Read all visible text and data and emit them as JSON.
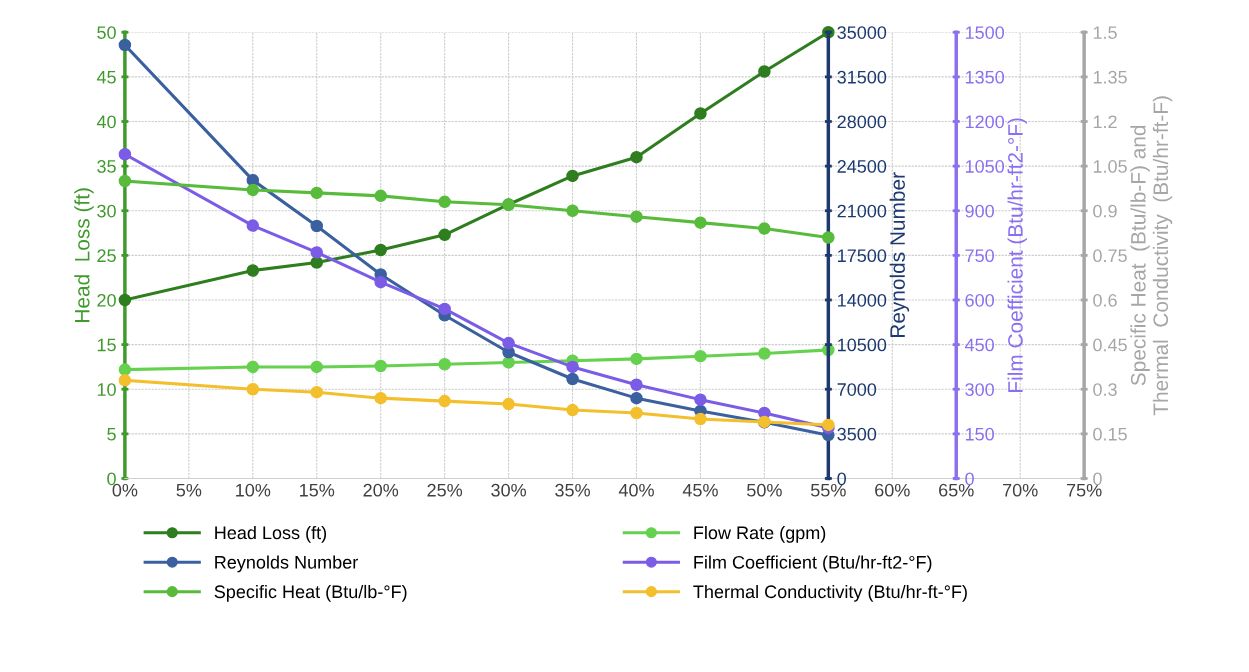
{
  "chart_data": [
    {
      "type": "line",
      "x": [
        0,
        10,
        15,
        20,
        25,
        30,
        35,
        40,
        45,
        50,
        55
      ],
      "xlim": [
        0,
        75
      ],
      "xticks": [
        {
          "value": 0,
          "label": "0%"
        },
        {
          "value": 5,
          "label": "5%"
        },
        {
          "value": 10,
          "label": "10%"
        },
        {
          "value": 15,
          "label": "15%"
        },
        {
          "value": 20,
          "label": "20%"
        },
        {
          "value": 25,
          "label": "25%"
        },
        {
          "value": 30,
          "label": "30%"
        },
        {
          "value": 35,
          "label": "35%"
        },
        {
          "value": 40,
          "label": "40%"
        },
        {
          "value": 45,
          "label": "45%"
        },
        {
          "value": 50,
          "label": "50%"
        },
        {
          "value": 55,
          "label": "55%"
        },
        {
          "value": 60,
          "label": "60%"
        },
        {
          "value": 65,
          "label": "65%"
        },
        {
          "value": 70,
          "label": "70%"
        },
        {
          "value": 75,
          "label": "75%"
        }
      ],
      "ylabel": "Head  Loss (ft)",
      "ylim": [
        0,
        50
      ],
      "yticks": [
        0,
        5,
        10,
        15,
        20,
        25,
        30,
        35,
        40,
        45,
        50
      ],
      "y2label": "Reynolds Number",
      "y2lim": [
        0,
        35000
      ],
      "y2ticks": [
        0,
        3500,
        7000,
        10500,
        14000,
        17500,
        21000,
        24500,
        28000,
        31500,
        35000
      ],
      "y3label": "Film Coefficient (Btu/hr-ft2-°F)",
      "y3lim": [
        0,
        1500
      ],
      "y3ticks": [
        0,
        150,
        300,
        450,
        600,
        750,
        900,
        1050,
        1200,
        1350,
        1500
      ],
      "grid": true,
      "legend": "bottom",
      "marker": "circle",
      "line_style": "solid",
      "series": [
        {
          "name": "Head Loss (ft)",
          "color": "#2e7d1e",
          "values": [
            20,
            23.3,
            24.2,
            25.6,
            27.3,
            30.7,
            33.9,
            36.0,
            40.9,
            45.6,
            50
          ]
        },
        {
          "name": "Flow Rate (gpm)",
          "color": "#66d14f",
          "values": [
            12.2,
            12.5,
            12.5,
            12.6,
            12.8,
            13.0,
            13.2,
            13.4,
            13.7,
            14.0,
            14.4
          ]
        },
        {
          "name": "Reynolds Number",
          "color": "#3a609f",
          "axis": "y2",
          "values": [
            34000,
            23400,
            19800,
            16000,
            12800,
            9900,
            7800,
            6300,
            5300,
            4400,
            3400
          ]
        },
        {
          "name": "Film Coefficient (Btu/hr-ft2-°F)",
          "color": "#7b5ce6",
          "axis": "y3",
          "values": [
            1090,
            850,
            760,
            660,
            570,
            455,
            375,
            315,
            265,
            220,
            170
          ]
        }
      ]
    },
    {
      "type": "line",
      "x": [
        0,
        10,
        15,
        20,
        25,
        30,
        35,
        40,
        45,
        50,
        55
      ],
      "xlim": [
        0,
        75
      ],
      "ylabel": "Specific Heat  (Btu/lb-F) and\nThermal  Conductivity  (Btu/hr-ft-F)",
      "ylim": [
        0,
        1.5
      ],
      "yticks": [
        0,
        0.15,
        0.3,
        0.45,
        0.6,
        0.75,
        0.9,
        1.05,
        1.2,
        1.35,
        1.5
      ],
      "tick_labels": "y",
      "legend": "bottom",
      "marker": "circle",
      "line_style": "solid",
      "series": [
        {
          "name": "Specific Heat (Btu/lb-°F)",
          "color": "#58bb3c",
          "values": [
            1.0,
            0.97,
            0.96,
            0.95,
            0.93,
            0.92,
            0.9,
            0.88,
            0.86,
            0.84,
            0.81
          ]
        },
        {
          "name": "Thermal Conductivity (Btu/hr-ft-°F)",
          "color": "#f3bf2d",
          "values": [
            0.33,
            0.3,
            0.29,
            0.27,
            0.26,
            0.25,
            0.23,
            0.22,
            0.2,
            0.19,
            0.18
          ]
        }
      ]
    }
  ]
}
